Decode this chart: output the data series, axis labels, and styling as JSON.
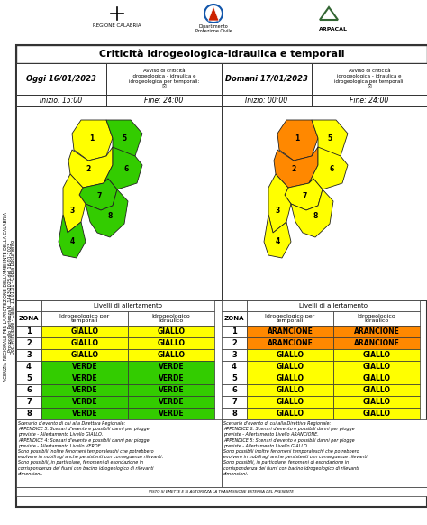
{
  "title": "Criticità idrogeologica-idraulica e temporali",
  "today_date": "Oggi 16/01/2023",
  "tomorrow_date": "Domani 17/01/2023",
  "avviso_text": "Avviso di criticità\nidrogeologica - idraulica e\nidrogeologica per temporali:\n☒",
  "today_start": "Inizio: 15:00",
  "today_end": "Fine: 24:00",
  "tomorrow_start": "Inizio: 00:00",
  "tomorrow_end": "Fine: 24:00",
  "livelli_header": "Livelli di allertamento",
  "zona_label": "ZONA",
  "col1_label": "Idrogeologico per\ntemporali",
  "col2_label": "Idrogeologico\nIdraulico",
  "zones": [
    1,
    2,
    3,
    4,
    5,
    6,
    7,
    8
  ],
  "today_col1": [
    "GIALLO",
    "GIALLO",
    "GIALLO",
    "VERDE",
    "VERDE",
    "VERDE",
    "VERDE",
    "VERDE"
  ],
  "today_col2": [
    "GIALLO",
    "GIALLO",
    "GIALLO",
    "VERDE",
    "VERDE",
    "VERDE",
    "VERDE",
    "VERDE"
  ],
  "tomorrow_col1": [
    "ARANCIONE",
    "ARANCIONE",
    "GIALLO",
    "GIALLO",
    "GIALLO",
    "GIALLO",
    "GIALLO",
    "GIALLO"
  ],
  "tomorrow_col2": [
    "ARANCIONE",
    "ARANCIONE",
    "GIALLO",
    "GIALLO",
    "GIALLO",
    "GIALLO",
    "GIALLO",
    "GIALLO"
  ],
  "color_giallo": "#FFFF00",
  "color_verde": "#33CC00",
  "color_arancione": "#FF8800",
  "bg_color": "#FFFFFF",
  "border_color": "#555555",
  "scenario_text_today": "Scenario d'evento di cui alla Direttiva Regionale:\nAPPENDICE 5: Scenari d'evento e possibili danni per piogge\npreviste - Allertamento Livello GIALLO.\nAPPENDICE 4: Scenari d'evento e possibili danni per piogge\npreviste - Allertamento Livello VERDE.\nSono possibili inoltre fenomeni temporaleschi che potrebbero\nevolvere in nubifragi anche persistenti con conseguenze rilevanti.\nSono possibili, in particolare, fenomeni di esondazione in\ncorrispondenza dei fiumi con bacino idrogeologico di rilevanti\ndimensioni.",
  "scenario_text_tomorrow": "Scenario d'evento di cui alla Direttiva Regionale:\nAPPENDICE 6: Scenari d'evento e possibili danni per piogge\npreviste - Allertamento Livello ARANCIONE.\nAPPENDICE 5: Scenari d'evento e possibili danni per piogge\npreviste - Allertamento Livello GIALLO.\nSono possibili inoltre fenomeni temporaleschi che potrebbero\nevolvere in nubifragi anche persistenti con conseguenze rilevanti.\nSono possibili, in particolare, fenomeni di esondazione in\ncorrispondenza dei fiumi con bacino idrogeologico di rilevanti\ndimensioni.",
  "side_text_line1": "AGENZIA REGIONALE PER LA PROTEZIONE DELL'AMBIENTE DELLA CALABRIA",
  "side_text_line2": "Protocollo Partenza N. 1443/2023 del 16-01-2023",
  "side_text_line3": "Doc. Principale - Class. 11.01.01 - Copia Documento",
  "footer_text": "VISTO SI EMETTE E SI AUTORIZZA LA TRASMISSIONE ESTERNA DEL PRESENTE",
  "logo_left": "REGIONE CALABRIA",
  "logo_center": "Dipartimento\nProtezione Civile",
  "logo_right": "ARPACAL"
}
